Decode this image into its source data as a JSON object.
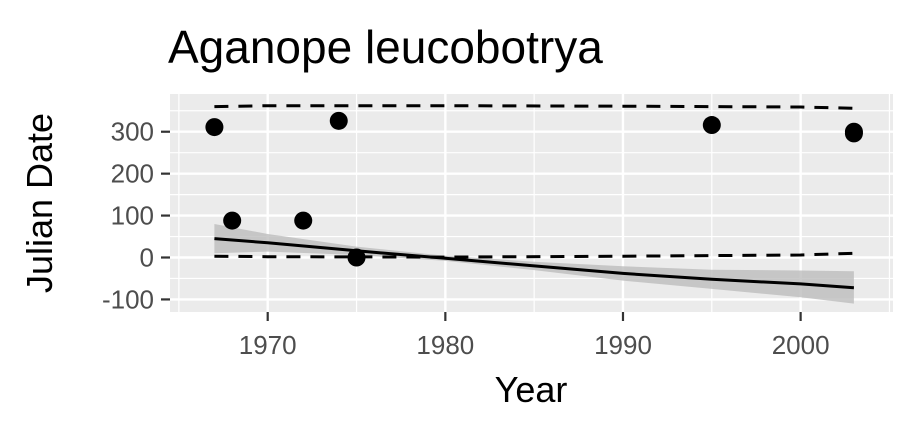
{
  "chart_data": {
    "type": "scatter",
    "title": "Aganope leucobotrya",
    "xlabel": "Year",
    "ylabel": "Julian Date",
    "xlim": [
      1964.5,
      2005.2
    ],
    "ylim": [
      -130,
      390
    ],
    "x_ticks": [
      1970,
      1980,
      1990,
      2000
    ],
    "y_ticks": [
      -100,
      0,
      100,
      200,
      300
    ],
    "grid": true,
    "background": "#ebebeb",
    "points": [
      {
        "x": 1967,
        "y": 311
      },
      {
        "x": 1968,
        "y": 88
      },
      {
        "x": 1972,
        "y": 88
      },
      {
        "x": 1974,
        "y": 326
      },
      {
        "x": 1975,
        "y": 0
      },
      {
        "x": 1995,
        "y": 316
      },
      {
        "x": 2003,
        "y": 300
      },
      {
        "x": 2003,
        "y": 296
      }
    ],
    "fit_line": {
      "x": [
        1967,
        1970,
        1975,
        1980,
        1985,
        1990,
        1995,
        2000,
        2003
      ],
      "y": [
        45,
        35,
        16,
        -2,
        -20,
        -38,
        -52,
        -63,
        -72
      ]
    },
    "confidence_band": {
      "x": [
        1967,
        1970,
        1975,
        1980,
        1985,
        1990,
        1995,
        2000,
        2003
      ],
      "lower": [
        10,
        14,
        6,
        -8,
        -30,
        -55,
        -75,
        -95,
        -110
      ],
      "upper": [
        80,
        56,
        26,
        4,
        -10,
        -21,
        -29,
        -31,
        -33
      ]
    },
    "dashed_upper": {
      "x": [
        1967,
        1970,
        1980,
        1990,
        2000,
        2003
      ],
      "y": [
        360,
        362,
        362,
        361,
        359,
        356
      ]
    },
    "dashed_lower": {
      "x": [
        1967,
        1970,
        1980,
        1990,
        2000,
        2003
      ],
      "y": [
        3,
        2,
        1,
        3,
        6,
        10
      ]
    },
    "colors": {
      "panel": "#ebebeb",
      "grid": "#ffffff",
      "points": "#000000",
      "fit": "#000000",
      "band": "#bdbdbd",
      "tick_text": "#4d4d4d"
    }
  }
}
